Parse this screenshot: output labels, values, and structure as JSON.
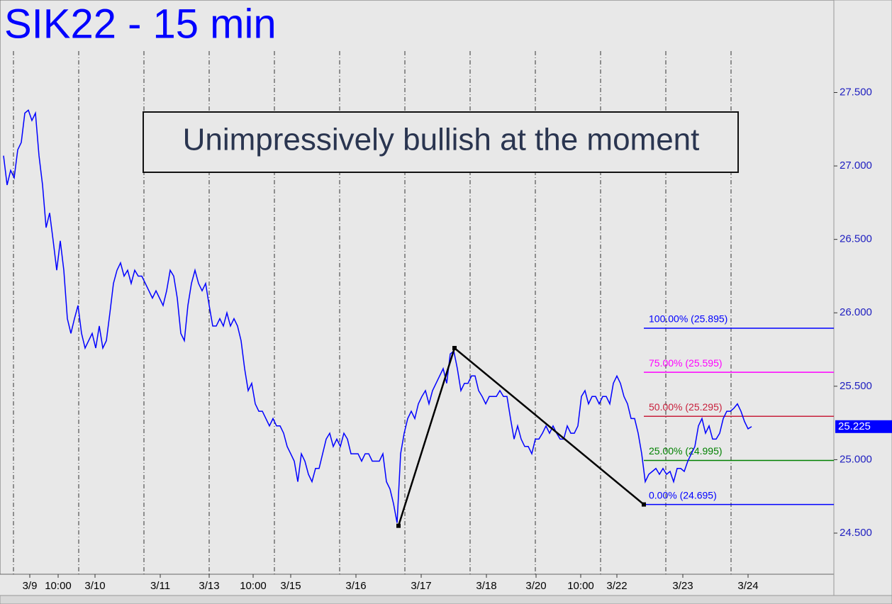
{
  "chart_data": {
    "type": "line",
    "title": "SIK22 - 15 min",
    "annotation": "Unimpressively bullish at the moment",
    "xlim": [
      0,
      234
    ],
    "ylim": [
      24.22,
      28.13
    ],
    "yticks": [
      {
        "value": 24.5,
        "label": "24.500"
      },
      {
        "value": 25,
        "label": "25.000"
      },
      {
        "value": 25.5,
        "label": "25.500"
      },
      {
        "value": 26,
        "label": "26.000"
      },
      {
        "value": 26.5,
        "label": "26.500"
      },
      {
        "value": 27,
        "label": "27.000"
      },
      {
        "value": 27.5,
        "label": "27.500"
      }
    ],
    "xticks": [
      {
        "value": 7.4,
        "label": "3/9"
      },
      {
        "value": 15.4,
        "label": "10:00"
      },
      {
        "value": 25.8,
        "label": "3/10"
      },
      {
        "value": 44.2,
        "label": "3/11"
      },
      {
        "value": 58,
        "label": "3/13"
      },
      {
        "value": 70.4,
        "label": "10:00"
      },
      {
        "value": 81,
        "label": "3/15"
      },
      {
        "value": 99.4,
        "label": "3/16"
      },
      {
        "value": 117.8,
        "label": "3/17"
      },
      {
        "value": 136.2,
        "label": "3/18"
      },
      {
        "value": 150.2,
        "label": "3/20"
      },
      {
        "value": 162.8,
        "label": "10:00"
      },
      {
        "value": 173,
        "label": "3/22"
      },
      {
        "value": 191.6,
        "label": "3/23"
      },
      {
        "value": 210,
        "label": "3/24"
      }
    ],
    "series": [
      {
        "color": "#0000ff",
        "values": [
          27.07,
          26.87,
          26.97,
          26.92,
          27.11,
          27.16,
          27.36,
          27.38,
          27.31,
          27.36,
          27.07,
          26.87,
          26.58,
          26.68,
          26.49,
          26.29,
          26.49,
          26.29,
          25.96,
          25.86,
          25.96,
          26.05,
          25.86,
          25.76,
          25.81,
          25.86,
          25.76,
          25.91,
          25.76,
          25.81,
          26.0,
          26.2,
          26.29,
          26.34,
          26.25,
          26.29,
          26.2,
          26.29,
          26.25,
          26.25,
          26.2,
          26.15,
          26.1,
          26.15,
          26.1,
          26.05,
          26.15,
          26.29,
          26.25,
          26.1,
          25.86,
          25.81,
          26.05,
          26.2,
          26.29,
          26.2,
          26.15,
          26.2,
          26.05,
          25.91,
          25.91,
          25.96,
          25.91,
          26.0,
          25.91,
          25.96,
          25.91,
          25.81,
          25.62,
          25.47,
          25.52,
          25.38,
          25.33,
          25.33,
          25.28,
          25.23,
          25.28,
          25.23,
          25.23,
          25.18,
          25.09,
          25.04,
          24.99,
          24.85,
          25.04,
          24.99,
          24.9,
          24.85,
          24.94,
          24.94,
          25.04,
          25.14,
          25.18,
          25.09,
          25.14,
          25.09,
          25.18,
          25.14,
          25.04,
          25.04,
          25.04,
          24.99,
          25.04,
          25.04,
          24.99,
          24.99,
          24.99,
          25.04,
          24.85,
          24.8,
          24.7,
          24.57,
          25.04,
          25.18,
          25.28,
          25.33,
          25.28,
          25.38,
          25.43,
          25.47,
          25.38,
          25.47,
          25.52,
          25.57,
          25.62,
          25.52,
          25.72,
          25.74,
          25.62,
          25.47,
          25.52,
          25.52,
          25.57,
          25.57,
          25.47,
          25.43,
          25.38,
          25.43,
          25.43,
          25.43,
          25.47,
          25.43,
          25.43,
          25.28,
          25.14,
          25.23,
          25.14,
          25.09,
          25.09,
          25.04,
          25.14,
          25.14,
          25.18,
          25.23,
          25.18,
          25.23,
          25.18,
          25.14,
          25.14,
          25.23,
          25.18,
          25.18,
          25.23,
          25.43,
          25.47,
          25.38,
          25.43,
          25.43,
          25.38,
          25.43,
          25.43,
          25.38,
          25.52,
          25.57,
          25.52,
          25.43,
          25.38,
          25.28,
          25.28,
          25.18,
          25.04,
          24.85,
          24.9,
          24.92,
          24.94,
          24.9,
          24.94,
          24.9,
          24.92,
          24.85,
          24.94,
          24.94,
          24.92,
          24.99,
          25.04,
          25.09,
          25.23,
          25.28,
          25.18,
          25.23,
          25.14,
          25.14,
          25.18,
          25.28,
          25.33,
          25.33,
          25.35,
          25.38,
          25.33,
          25.26,
          25.21,
          25.225
        ]
      }
    ],
    "swing": {
      "color": "#000000",
      "x": [
        111.4,
        127.2,
        180.6
      ],
      "values": [
        24.55,
        25.76,
        24.695
      ]
    },
    "levels": [
      {
        "label": "100.00% (25.895)",
        "value": 25.895,
        "color": "#0000ff"
      },
      {
        "label": "75.00% (25.595)",
        "value": 25.595,
        "color": "#ff00ff"
      },
      {
        "label": "50.00% (25.295)",
        "value": 25.295,
        "color": "#c8203c"
      },
      {
        "label": "25.00% (24.995)",
        "value": 24.995,
        "color": "#008000"
      },
      {
        "label": "0.00% (24.695)",
        "value": 24.695,
        "color": "#0000ff"
      }
    ]
  }
}
